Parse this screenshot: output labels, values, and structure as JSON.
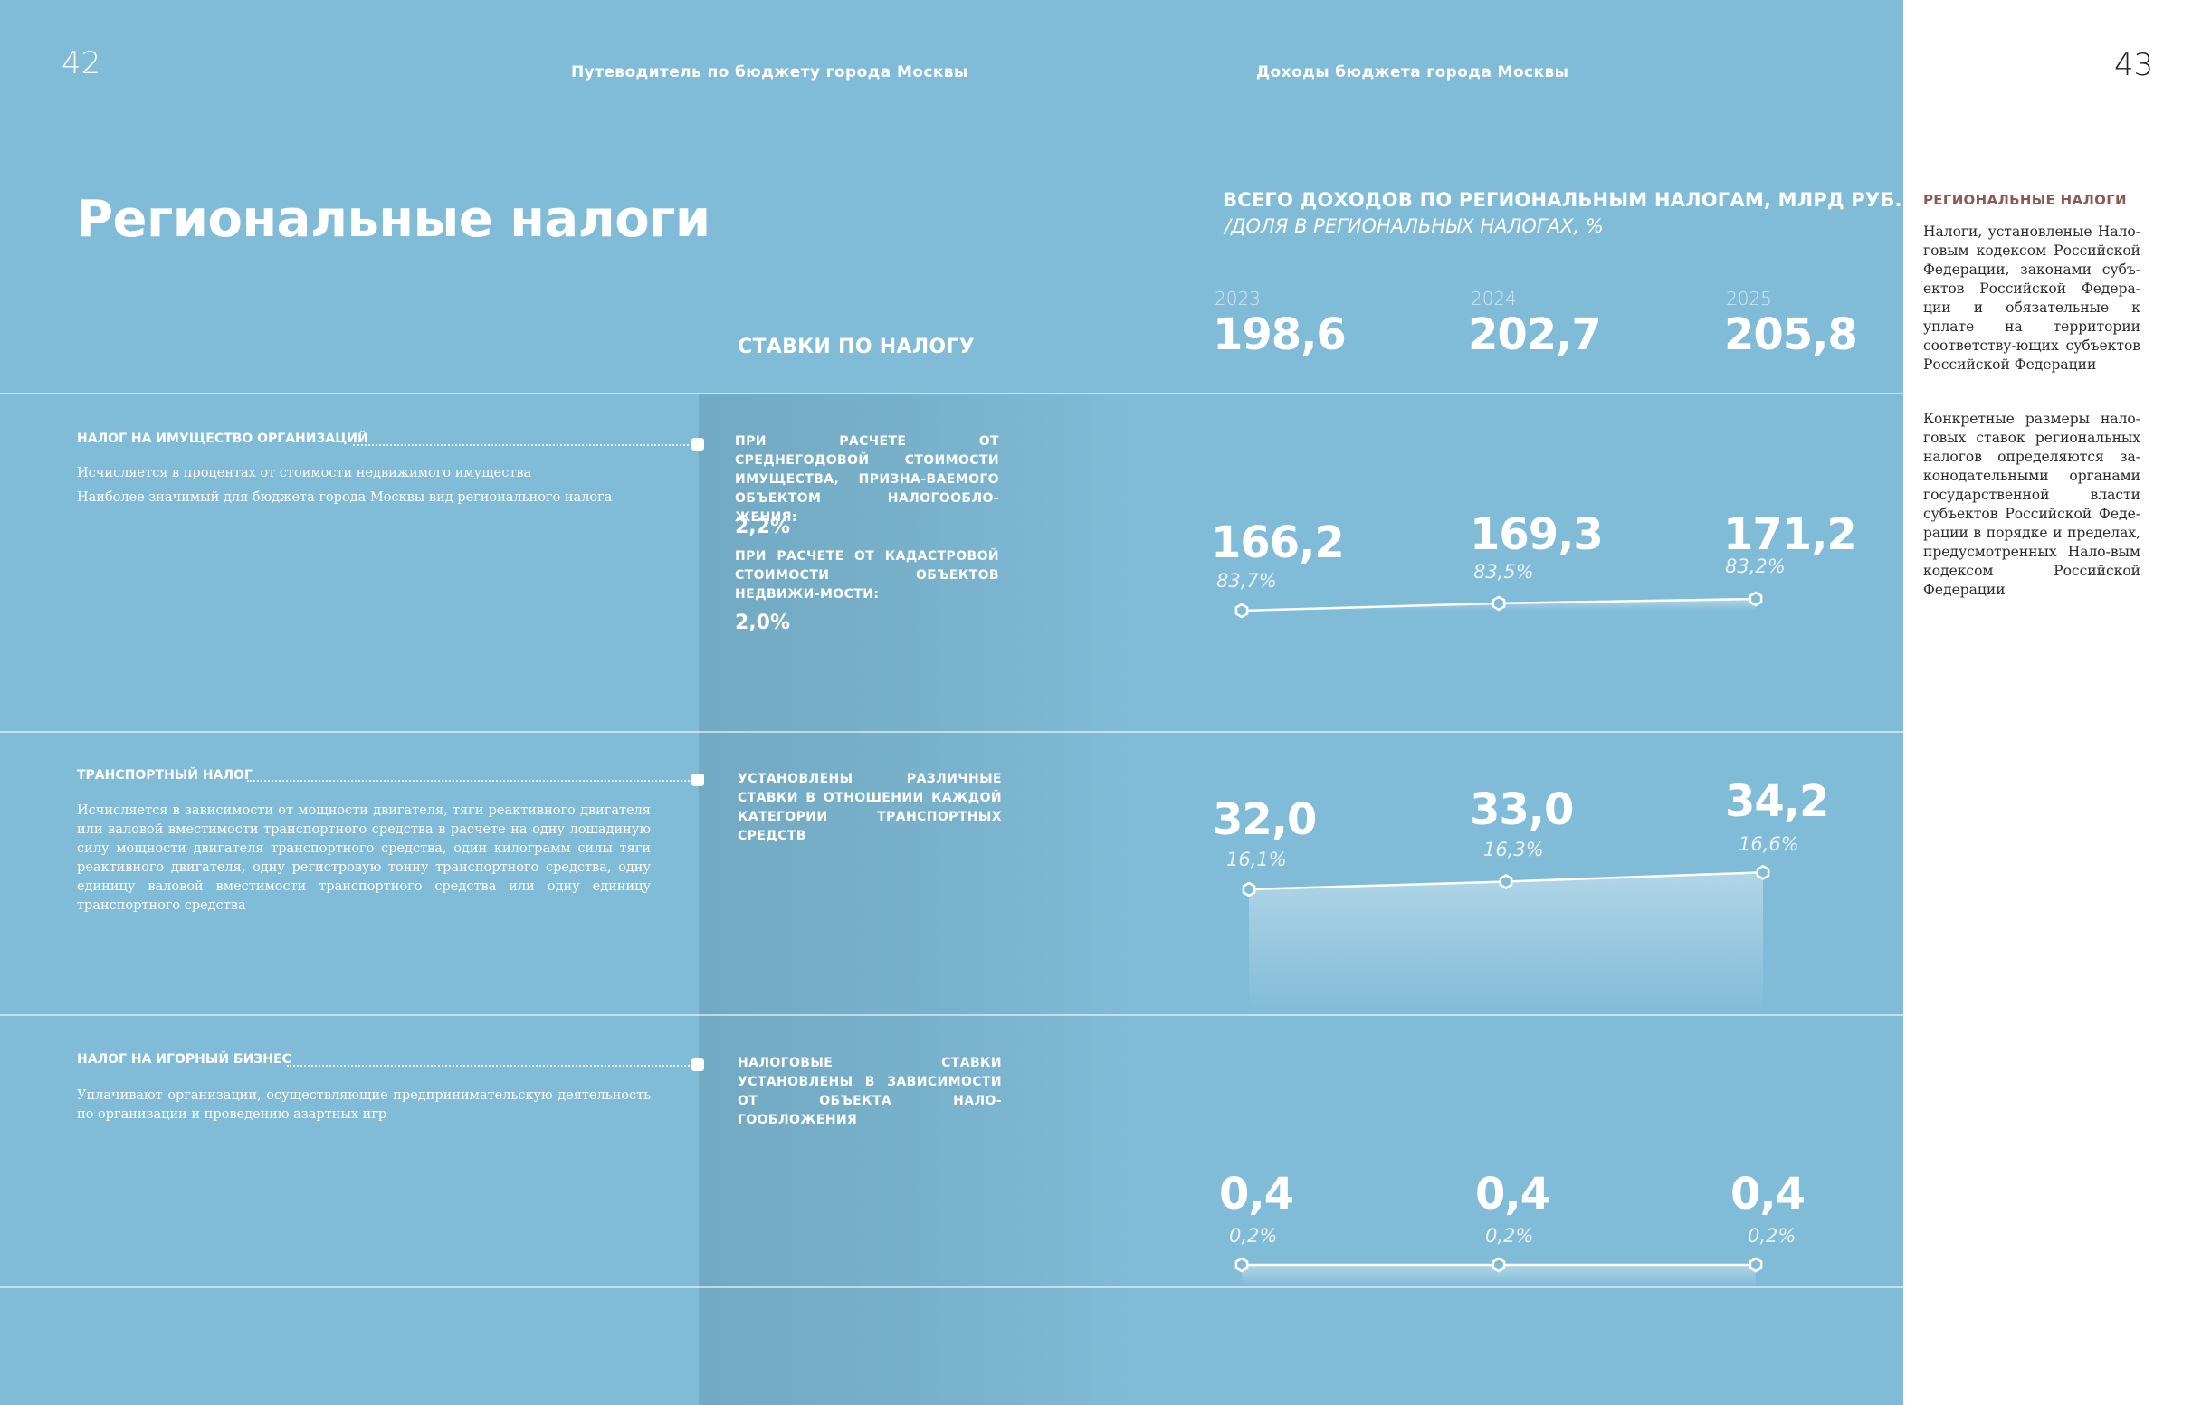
{
  "header": {
    "page_left": "42",
    "page_right": "43",
    "running_left": "Путеводитель по бюджету города Москвы",
    "running_right": "Доходы бюджета города Москвы"
  },
  "title": "Региональные налоги",
  "chart_header": {
    "main": "ВСЕГО ДОХОДОВ ПО РЕГИОНАЛЬНЫМ НАЛОГАМ, МЛРД РУБ.",
    "sub": "/ДОЛЯ В РЕГИОНАЛЬНЫХ НАЛОГАХ, %"
  },
  "rates_header": "СТАВКИ ПО НАЛОГУ",
  "years": [
    "2023",
    "2024",
    "2025"
  ],
  "totals": [
    "198,6",
    "202,7",
    "205,8"
  ],
  "rows": [
    {
      "title": "НАЛОГ НА ИМУЩЕСТВО ОРГАНИЗАЦИЙ",
      "desc": [
        "Исчисляется в процентах от стоимости недвижимого имущества",
        "Наиболее значимый для бюджета города Москвы вид регионального налога"
      ],
      "rates": [
        {
          "text": "при расчете от среднегодовой стоимости имущества, призна-ваемого объектом налогообло-жения:",
          "value": "2,2%"
        },
        {
          "text": "при расчете от кадастровой стоимости объектов недвижи-мости:",
          "value": "2,0%"
        }
      ],
      "values": [
        "166,2",
        "169,3",
        "171,2"
      ],
      "shares": [
        "83,7%",
        "83,5%",
        "83,2%"
      ]
    },
    {
      "title": "ТРАНСПОРТНЫЙ НАЛОГ",
      "desc": [
        "Исчисляется в зависимости от мощности двигателя, тяги реактивного двигателя или валовой вместимости транспортного средства в расчете на одну лошадиную силу мощности двигателя транспортного средства, один килограмм силы тяги реактивного двигателя, одну регистровую тонну транспортного средства, одну единицу валовой вместимости транспортного средства или одну единицу транспортного средства"
      ],
      "rates": [
        {
          "text": "Установлены различные ставки в отношении каждой категории транспортных средств",
          "value": ""
        }
      ],
      "values": [
        "32,0",
        "33,0",
        "34,2"
      ],
      "shares": [
        "16,1%",
        "16,3%",
        "16,6%"
      ]
    },
    {
      "title": "НАЛОГ НА ИГОРНЫЙ БИЗНЕС",
      "desc": [
        "Уплачивают организации, осуществляющие предпринимательскую деятельность по организации и проведению азартных игр"
      ],
      "rates": [
        {
          "text": "Налоговые ставки установлены в зависимости от объекта нало-гообложения",
          "value": ""
        }
      ],
      "values": [
        "0,4",
        "0,4",
        "0,4"
      ],
      "shares": [
        "0,2%",
        "0,2%",
        "0,2%"
      ]
    }
  ],
  "chart_data": [
    {
      "type": "area",
      "x": [
        "2023",
        "2024",
        "2025"
      ],
      "series": [
        {
          "name": "НАЛОГ НА ИМУЩЕСТВО ОРГАНИЗАЦИЙ",
          "values": [
            166.2,
            169.3,
            171.2
          ],
          "shares": [
            83.7,
            83.5,
            83.2
          ]
        }
      ]
    },
    {
      "type": "area",
      "x": [
        "2023",
        "2024",
        "2025"
      ],
      "series": [
        {
          "name": "ТРАНСПОРТНЫЙ НАЛОГ",
          "values": [
            32.0,
            33.0,
            34.2
          ],
          "shares": [
            16.1,
            16.3,
            16.6
          ]
        }
      ]
    },
    {
      "type": "area",
      "x": [
        "2023",
        "2024",
        "2025"
      ],
      "series": [
        {
          "name": "НАЛОГ НА ИГОРНЫЙ БИЗНЕС",
          "values": [
            0.4,
            0.4,
            0.4
          ],
          "shares": [
            0.2,
            0.2,
            0.2
          ]
        }
      ]
    }
  ],
  "sidebar": {
    "title": "РЕГИОНАЛЬНЫЕ НАЛОГИ",
    "paragraphs": [
      "Налоги, установленые Нало-говым кодексом Российской Федерации, законами субъ-ектов Российской Федера-ции и обязательные к уплате на территории соответству-ющих субъектов Российской Федерации",
      "Конкретные размеры нало-говых ставок региональных налогов определяются за-конодательными органами государственной власти субъектов Российской Феде-рации в порядке и пределах, предусмотренных Нало-вым кодексом Российской Федерации"
    ]
  }
}
